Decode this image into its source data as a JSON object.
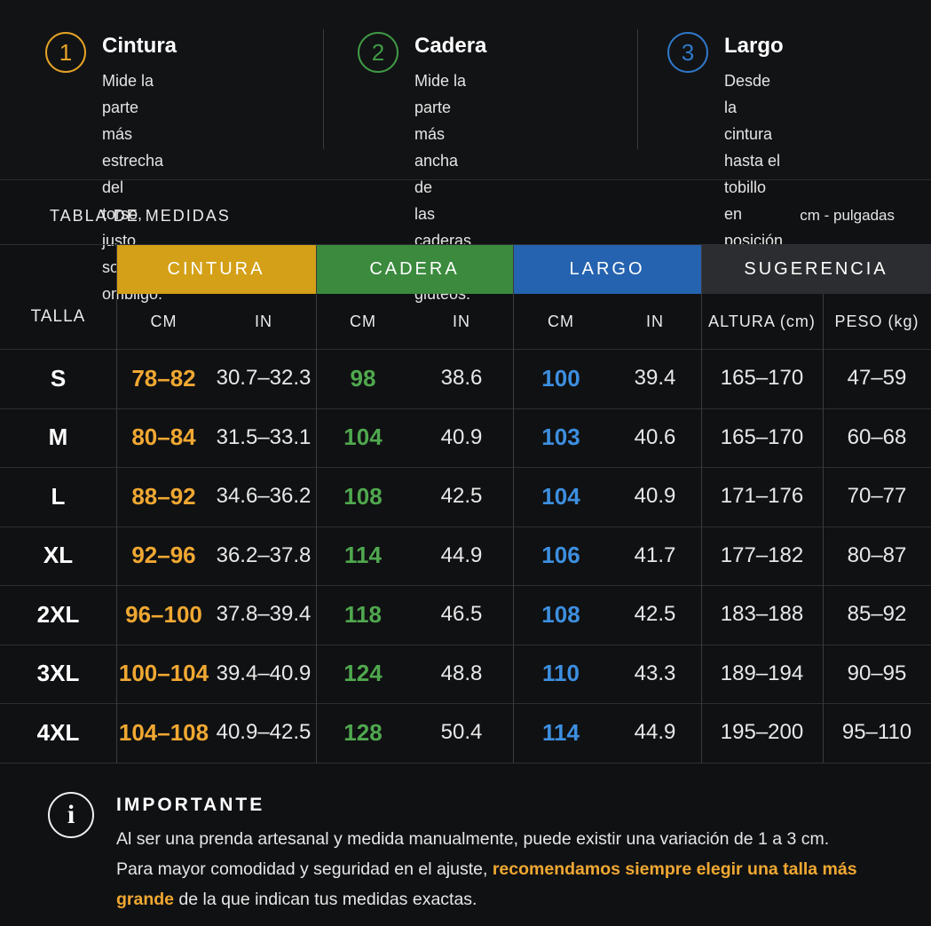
{
  "steps": [
    {
      "num": "1",
      "title": "Cintura",
      "desc": [
        "Mide la parte más estrecha",
        "del torso, justo sobre el",
        "ombligo."
      ],
      "color": "#e5a326"
    },
    {
      "num": "2",
      "title": "Cadera",
      "desc": [
        "Mide la parte más ancha de",
        "las caderas y glúteos."
      ],
      "color": "#3f9a45"
    },
    {
      "num": "3",
      "title": "Largo",
      "desc": [
        "Desde la cintura hasta el",
        "tobillo en posición recta."
      ],
      "color": "#2f78c8"
    }
  ],
  "table_title": "TABLA DE MEDIDAS",
  "units": "cm - pulgadas",
  "groups": [
    {
      "label": "CINTURA",
      "color": "#d4a017"
    },
    {
      "label": "CADERA",
      "color": "#3b8a3e"
    },
    {
      "label": "LARGO",
      "color": "#2563b0"
    },
    {
      "label": "SUGERENCIA",
      "color": "#2c2d30"
    }
  ],
  "talla_header": "TALLA",
  "subheaders": [
    "CM",
    "IN",
    "CM",
    "IN",
    "CM",
    "IN",
    "ALTURA (cm)",
    "PESO (kg)"
  ],
  "value_colors": {
    "cintura": "#f0a832",
    "cadera": "#4fa84e",
    "largo": "#3d8fe0"
  },
  "rows": [
    {
      "size": "S",
      "cintura_cm": "78–82",
      "cintura_in": "30.7–32.3",
      "cadera_cm": "98",
      "cadera_in": "38.6",
      "largo_cm": "100",
      "largo_in": "39.4",
      "altura": "165–170",
      "peso": "47–59"
    },
    {
      "size": "M",
      "cintura_cm": "80–84",
      "cintura_in": "31.5–33.1",
      "cadera_cm": "104",
      "cadera_in": "40.9",
      "largo_cm": "103",
      "largo_in": "40.6",
      "altura": "165–170",
      "peso": "60–68"
    },
    {
      "size": "L",
      "cintura_cm": "88–92",
      "cintura_in": "34.6–36.2",
      "cadera_cm": "108",
      "cadera_in": "42.5",
      "largo_cm": "104",
      "largo_in": "40.9",
      "altura": "171–176",
      "peso": "70–77"
    },
    {
      "size": "XL",
      "cintura_cm": "92–96",
      "cintura_in": "36.2–37.8",
      "cadera_cm": "114",
      "cadera_in": "44.9",
      "largo_cm": "106",
      "largo_in": "41.7",
      "altura": "177–182",
      "peso": "80–87"
    },
    {
      "size": "2XL",
      "cintura_cm": "96–100",
      "cintura_in": "37.8–39.4",
      "cadera_cm": "118",
      "cadera_in": "46.5",
      "largo_cm": "108",
      "largo_in": "42.5",
      "altura": "183–188",
      "peso": "85–92"
    },
    {
      "size": "3XL",
      "cintura_cm": "100–104",
      "cintura_in": "39.4–40.9",
      "cadera_cm": "124",
      "cadera_in": "48.8",
      "largo_cm": "110",
      "largo_in": "43.3",
      "altura": "189–194",
      "peso": "90–95"
    },
    {
      "size": "4XL",
      "cintura_cm": "104–108",
      "cintura_in": "40.9–42.5",
      "cadera_cm": "128",
      "cadera_in": "50.4",
      "largo_cm": "114",
      "largo_in": "44.9",
      "altura": "195–200",
      "peso": "95–110"
    }
  ],
  "note": {
    "icon": "info-icon",
    "title": "IMPORTANTE",
    "line1": "Al ser una prenda artesanal y medida manualmente, puede existir una variación de 1 a 3 cm.",
    "line2_start": "Para mayor comodidad y seguridad en el ajuste, ",
    "highlight": "recomendamos siempre elegir una talla más grande",
    "line2_end": " de la que indican tus medidas exactas."
  }
}
